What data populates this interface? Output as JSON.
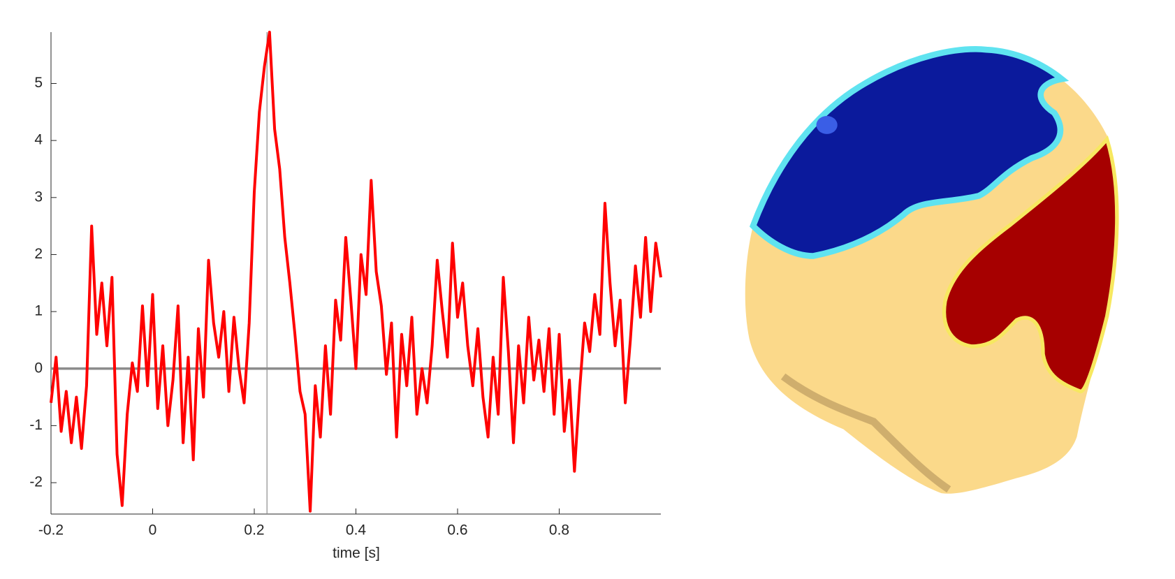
{
  "chart_data": {
    "type": "line",
    "xlabel": "time [s]",
    "x": [
      -0.2,
      -0.19,
      -0.18,
      -0.17,
      -0.16,
      -0.15,
      -0.14,
      -0.13,
      -0.12,
      -0.11,
      -0.1,
      -0.09,
      -0.08,
      -0.07,
      -0.06,
      -0.05,
      -0.04,
      -0.03,
      -0.02,
      -0.01,
      0,
      0.01,
      0.02,
      0.03,
      0.04,
      0.05,
      0.06,
      0.07,
      0.08,
      0.09,
      0.1,
      0.11,
      0.12,
      0.13,
      0.14,
      0.15,
      0.16,
      0.17,
      0.18,
      0.19,
      0.2,
      0.21,
      0.22,
      0.23,
      0.24,
      0.25,
      0.26,
      0.27,
      0.28,
      0.29,
      0.3,
      0.31,
      0.32,
      0.33,
      0.34,
      0.35,
      0.36,
      0.37,
      0.38,
      0.39,
      0.4,
      0.41,
      0.42,
      0.43,
      0.44,
      0.45,
      0.46,
      0.47,
      0.48,
      0.49,
      0.5,
      0.51,
      0.52,
      0.53,
      0.54,
      0.55,
      0.56,
      0.57,
      0.58,
      0.59,
      0.6,
      0.61,
      0.62,
      0.63,
      0.64,
      0.65,
      0.66,
      0.67,
      0.68,
      0.69,
      0.7,
      0.71,
      0.72,
      0.73,
      0.74,
      0.75,
      0.76,
      0.77,
      0.78,
      0.79,
      0.8,
      0.81,
      0.82,
      0.83,
      0.84,
      0.85,
      0.86,
      0.87,
      0.88,
      0.89,
      0.9,
      0.91,
      0.92,
      0.93,
      0.94,
      0.95,
      0.96,
      0.97,
      0.98,
      0.99,
      1.0
    ],
    "series": [
      {
        "color": "#ff0000",
        "values": [
          -0.6,
          0.2,
          -1.1,
          -0.4,
          -1.3,
          -0.5,
          -1.4,
          -0.3,
          2.5,
          0.6,
          1.5,
          0.4,
          1.6,
          -1.5,
          -2.4,
          -0.8,
          0.1,
          -0.4,
          1.1,
          -0.3,
          1.3,
          -0.7,
          0.4,
          -1.0,
          -0.2,
          1.1,
          -1.3,
          0.2,
          -1.6,
          0.7,
          -0.5,
          1.9,
          0.8,
          0.2,
          1.0,
          -0.4,
          0.9,
          0.0,
          -0.6,
          0.8,
          3.1,
          4.5,
          5.3,
          5.9,
          4.2,
          3.5,
          2.3,
          1.5,
          0.6,
          -0.4,
          -0.8,
          -2.5,
          -0.3,
          -1.2,
          0.4,
          -0.8,
          1.2,
          0.5,
          2.3,
          1.2,
          0.0,
          2.0,
          1.3,
          3.3,
          1.7,
          1.1,
          -0.1,
          0.8,
          -1.2,
          0.6,
          -0.3,
          0.9,
          -0.8,
          0.0,
          -0.6,
          0.4,
          1.9,
          1.0,
          0.2,
          2.2,
          0.9,
          1.5,
          0.4,
          -0.3,
          0.7,
          -0.5,
          -1.2,
          0.2,
          -0.8,
          1.6,
          0.3,
          -1.3,
          0.4,
          -0.6,
          0.9,
          -0.2,
          0.5,
          -0.4,
          0.7,
          -0.8,
          0.6,
          -1.1,
          -0.2,
          -1.8,
          -0.4,
          0.8,
          0.3,
          1.3,
          0.6,
          2.9,
          1.5,
          0.4,
          1.2,
          -0.6,
          0.5,
          1.8,
          0.9,
          2.3,
          1.0,
          2.2,
          1.6
        ]
      }
    ],
    "xlim": [
      -0.2,
      1.0
    ],
    "ylim": [
      -2.55,
      5.9
    ],
    "xticks": [
      -0.2,
      0,
      0.2,
      0.4,
      0.6,
      0.8
    ],
    "yticks": [
      -2,
      -1,
      0,
      1,
      2,
      3,
      4,
      5
    ],
    "hline": 0,
    "vline": 0.225
  }
}
